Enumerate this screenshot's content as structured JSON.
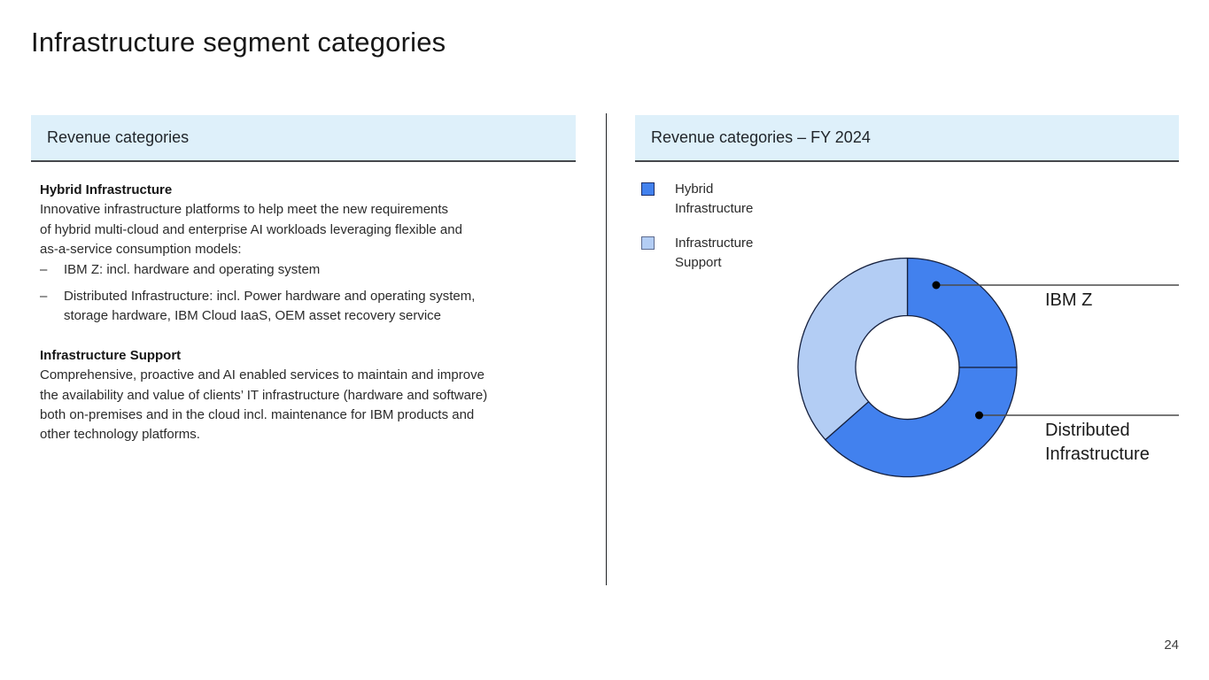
{
  "slide": {
    "title": "Infrastructure segment categories",
    "page_number": "24",
    "bullet_marker": "–"
  },
  "left_panel": {
    "header": "Revenue categories",
    "sections": [
      {
        "heading": "Hybrid Infrastructure",
        "body": "Innovative infrastructure platforms to help meet the new requirements\nof hybrid multi-cloud and enterprise AI workloads leveraging flexible and\nas-a-service consumption models:",
        "bullets": [
          "IBM Z: incl. hardware and operating system",
          "Distributed Infrastructure: incl. Power hardware and operating system,\nstorage hardware, IBM Cloud IaaS, OEM asset recovery service"
        ]
      },
      {
        "heading": "Infrastructure Support",
        "body": "Comprehensive, proactive and AI enabled services to maintain and improve\nthe availability and value of clients’ IT infrastructure (hardware and software)\nboth on-premises and in the cloud incl. maintenance for IBM products and\nother technology platforms."
      }
    ]
  },
  "right_panel": {
    "header": "Revenue categories – FY 2024",
    "legend": [
      {
        "label": "Hybrid\nInfrastructure",
        "color": "#4281ee",
        "border": "#1b2e6b"
      },
      {
        "label": "Infrastructure\nSupport",
        "color": "#b3cdf4",
        "border": "#5d6b8f"
      }
    ]
  },
  "chart_data": {
    "type": "pie",
    "subtype": "donut",
    "title": "Revenue categories – FY 2024",
    "segments": [
      {
        "label": "IBM Z",
        "value": 25,
        "color": "#4281ee"
      },
      {
        "label": "Distributed Infrastructure",
        "value": 38.5,
        "color": "#4281ee"
      },
      {
        "label": "Infrastructure Support",
        "value": 36.5,
        "color": "#b3cdf4"
      }
    ],
    "value_format": "percent_of_arc_estimated",
    "start_angle_deg": 0,
    "clockwise": true,
    "stroke": "#16213f",
    "legend_position": "upper-left",
    "callouts": [
      {
        "label": "IBM Z"
      },
      {
        "label": "Distributed Infrastructure"
      }
    ],
    "colors": {
      "hybrid_infrastructure": "#4281ee",
      "infrastructure_support": "#b3cdf4"
    }
  }
}
